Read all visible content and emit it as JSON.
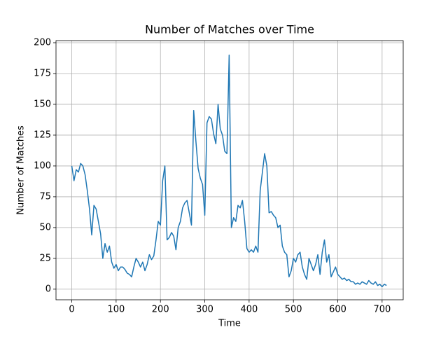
{
  "chart_data": {
    "type": "line",
    "title": "Number of Matches over Time",
    "xlabel": "Time",
    "ylabel": "Number of Matches",
    "x": [
      0,
      5,
      10,
      15,
      20,
      25,
      30,
      35,
      40,
      45,
      50,
      55,
      60,
      65,
      70,
      75,
      80,
      85,
      90,
      95,
      100,
      105,
      110,
      115,
      120,
      125,
      130,
      135,
      140,
      145,
      150,
      155,
      160,
      165,
      170,
      175,
      180,
      185,
      190,
      195,
      200,
      205,
      210,
      215,
      220,
      225,
      230,
      235,
      240,
      245,
      250,
      255,
      260,
      265,
      270,
      275,
      280,
      285,
      290,
      295,
      300,
      305,
      310,
      315,
      320,
      325,
      330,
      335,
      340,
      345,
      350,
      355,
      360,
      365,
      370,
      375,
      380,
      385,
      390,
      395,
      400,
      405,
      410,
      415,
      420,
      425,
      430,
      435,
      440,
      445,
      450,
      455,
      460,
      465,
      470,
      475,
      480,
      485,
      490,
      495,
      500,
      505,
      510,
      515,
      520,
      525,
      530,
      535,
      540,
      545,
      550,
      555,
      560,
      565,
      570,
      575,
      580,
      585,
      590,
      595,
      600,
      605,
      610,
      615,
      620,
      625,
      630,
      635,
      640,
      645,
      650,
      655,
      660,
      665,
      670,
      675,
      680,
      685,
      690,
      695,
      700,
      705,
      710
    ],
    "series": [
      {
        "name": "Number of Matches",
        "color": "#1f77b4",
        "values": [
          100,
          88,
          97,
          95,
          102,
          100,
          93,
          80,
          65,
          44,
          68,
          65,
          55,
          45,
          25,
          37,
          30,
          35,
          22,
          17,
          20,
          15,
          18,
          18,
          16,
          13,
          12,
          10,
          18,
          25,
          22,
          18,
          22,
          15,
          20,
          28,
          24,
          27,
          40,
          55,
          52,
          88,
          100,
          40,
          42,
          46,
          43,
          32,
          50,
          55,
          66,
          70,
          72,
          62,
          52,
          145,
          120,
          98,
          90,
          85,
          60,
          135,
          140,
          138,
          126,
          118,
          150,
          130,
          125,
          112,
          110,
          190,
          50,
          58,
          55,
          68,
          66,
          72,
          55,
          33,
          30,
          32,
          30,
          35,
          30,
          80,
          95,
          110,
          100,
          62,
          63,
          60,
          58,
          50,
          52,
          35,
          30,
          28,
          10,
          15,
          25,
          22,
          28,
          30,
          18,
          12,
          8,
          25,
          20,
          15,
          20,
          28,
          12,
          30,
          40,
          22,
          28,
          10,
          14,
          18,
          12,
          10,
          8,
          9,
          7,
          8,
          6,
          6,
          4,
          5,
          4,
          6,
          5,
          4,
          7,
          5,
          4,
          6,
          3,
          4,
          2,
          4,
          3
        ]
      }
    ],
    "xlim": [
      -35.6,
      747.6
    ],
    "ylim": [
      -8.6,
      201.7
    ],
    "xticks": [
      0,
      100,
      200,
      300,
      400,
      500,
      600,
      700
    ],
    "yticks": [
      0,
      25,
      50,
      75,
      100,
      125,
      150,
      175,
      200
    ],
    "grid": true
  }
}
